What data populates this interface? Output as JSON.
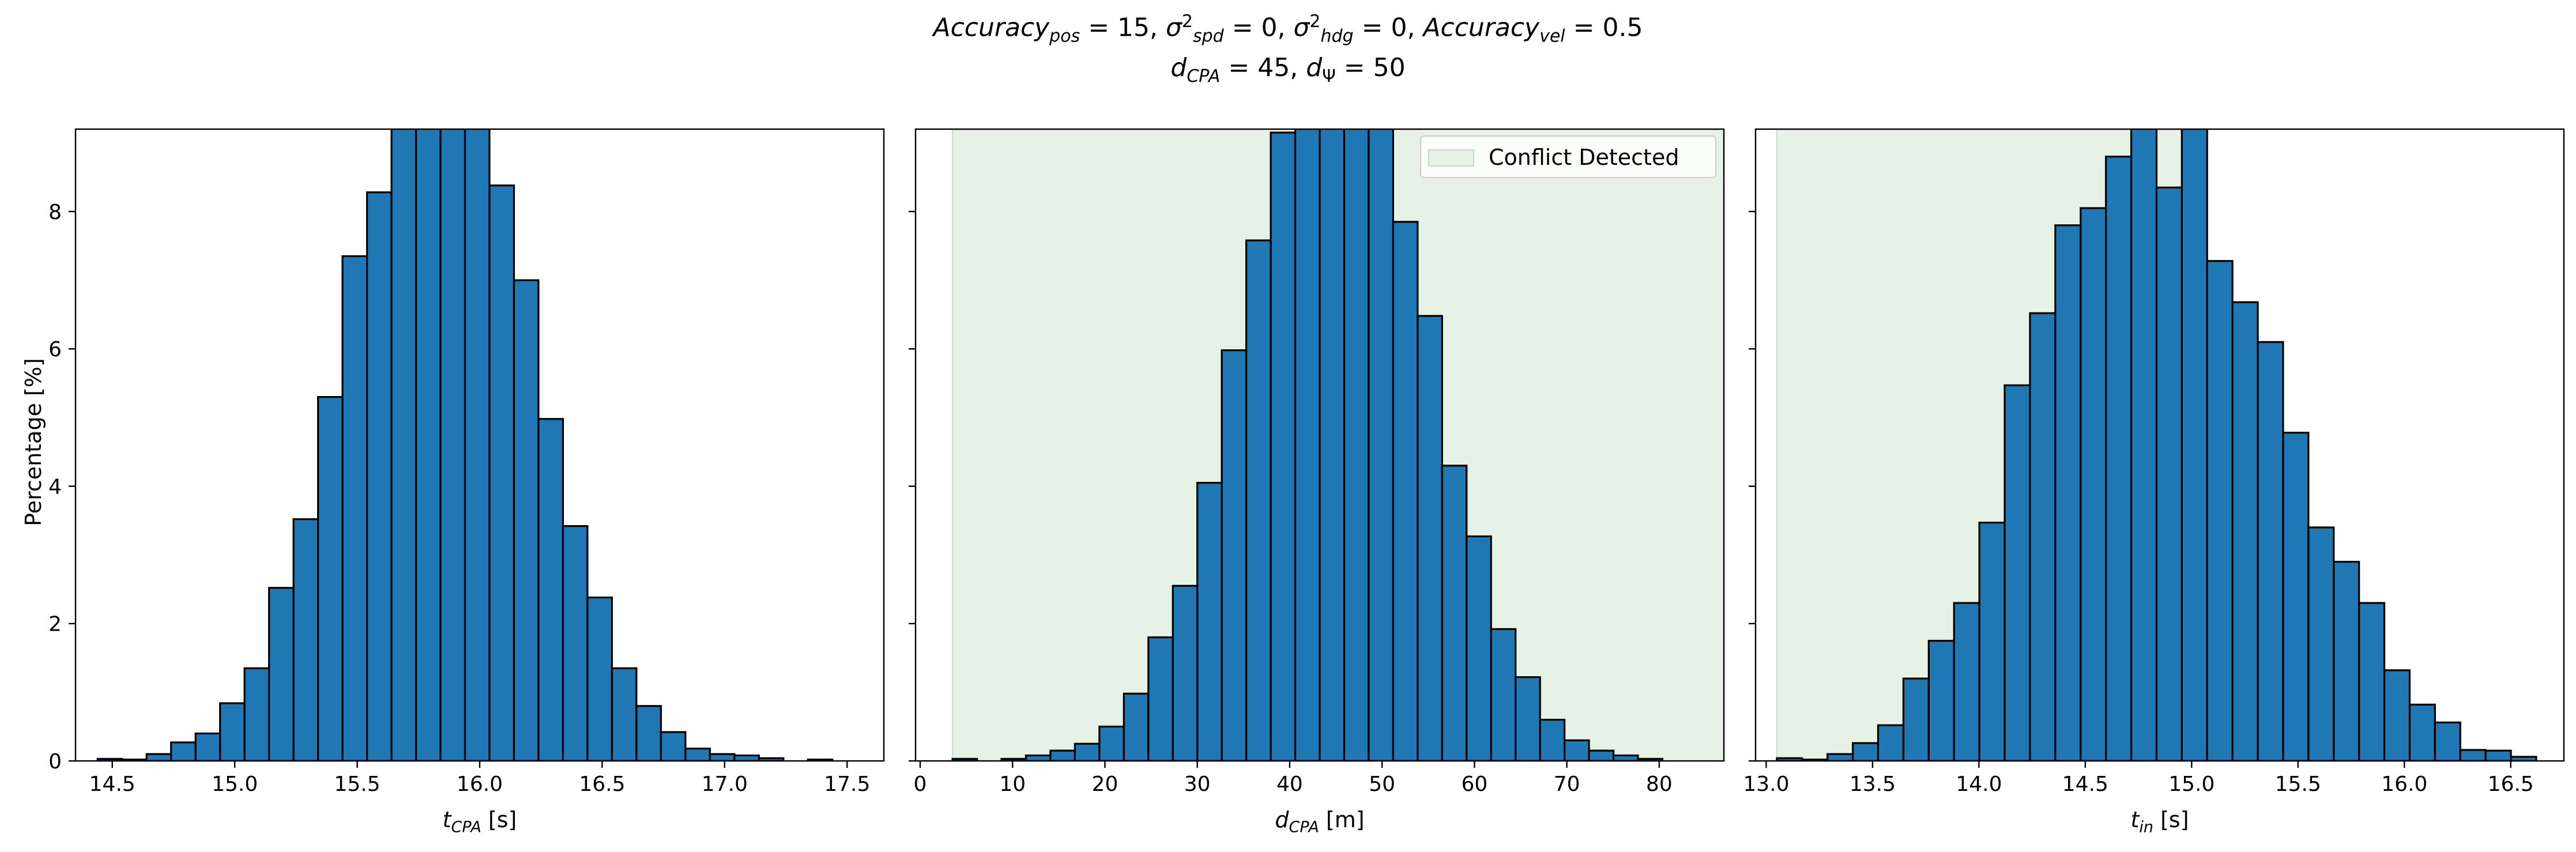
{
  "figure_title": {
    "line1": {
      "acc_pos_sym": "Accuracy",
      "acc_pos_sub": "pos",
      "acc_pos_val": " = 15, ",
      "spd_sym": "σ",
      "spd_sup": "2",
      "spd_sub": "spd",
      "spd_val": " = 0, ",
      "hdg_sym": "σ",
      "hdg_sup": "2",
      "hdg_sub": "hdg",
      "hdg_val": " = 0, ",
      "acc_vel_sym": "Accuracy",
      "acc_vel_sub": "vel",
      "acc_vel_val": " = 0.5"
    },
    "line2": {
      "d_sym": "d",
      "d_sub": "CPA",
      "d_val": " = 45, ",
      "dpsi_sym": "d",
      "dpsi_sub": "Ψ",
      "dpsi_val": " = 50"
    }
  },
  "ylabel": "Percentage [%]",
  "legend_label": "Conflict Detected",
  "colors": {
    "bar": "#1f77b4",
    "edge": "#000000",
    "shade": "#e5f2e5"
  },
  "chart_data": [
    {
      "type": "bar",
      "xlabel": {
        "sym": "t",
        "sub": "CPA",
        "unit": " [s]"
      },
      "ylabel": "Percentage [%]",
      "xlim": [
        14.35,
        17.65
      ],
      "ylim": [
        0,
        9.2
      ],
      "xticks": [
        14.5,
        15.0,
        15.5,
        16.0,
        16.5,
        17.0,
        17.5
      ],
      "xtick_labels": [
        "14.5",
        "15.0",
        "15.5",
        "16.0",
        "16.5",
        "17.0",
        "17.5"
      ],
      "yticks": [
        0,
        2,
        4,
        6,
        8
      ],
      "ytick_labels": [
        "0",
        "2",
        "4",
        "6",
        "8"
      ],
      "bin_start": 14.44,
      "bin_width": 0.1,
      "values": [
        0.03,
        0.02,
        0.1,
        0.27,
        0.4,
        0.84,
        1.35,
        2.52,
        3.52,
        5.3,
        7.35,
        8.28,
        9.5,
        9.8,
        9.6,
        9.4,
        8.38,
        7.0,
        4.98,
        3.42,
        2.38,
        1.35,
        0.8,
        0.42,
        0.18,
        0.1,
        0.08,
        0.04,
        0.0,
        0.02
      ]
    },
    {
      "type": "bar",
      "xlabel": {
        "sym": "d",
        "sub": "CPA",
        "unit": " [m]"
      },
      "xlim": [
        -0.5,
        87
      ],
      "ylim": [
        0,
        9.2
      ],
      "xticks": [
        0,
        10,
        20,
        30,
        40,
        50,
        60,
        70,
        80
      ],
      "xtick_labels": [
        "0",
        "10",
        "20",
        "30",
        "40",
        "50",
        "60",
        "70",
        "80"
      ],
      "yticks": [
        0,
        2,
        4,
        6,
        8
      ],
      "ytick_labels": [
        "",
        "",
        "",
        "",
        ""
      ],
      "shaded_region": {
        "x0": 3.5,
        "x1": 87,
        "label": "Conflict Detected"
      },
      "legend": "top-right",
      "bin_start": 3.5,
      "bin_width": 2.65,
      "values": [
        0.03,
        0.0,
        0.03,
        0.08,
        0.15,
        0.25,
        0.5,
        0.98,
        1.8,
        2.55,
        4.05,
        5.98,
        7.58,
        9.15,
        9.5,
        9.5,
        9.5,
        9.5,
        7.85,
        6.48,
        4.3,
        3.27,
        1.92,
        1.22,
        0.6,
        0.3,
        0.15,
        0.08,
        0.03,
        0.0
      ]
    },
    {
      "type": "bar",
      "xlabel": {
        "sym": "t",
        "sub": "in",
        "unit": " [s]"
      },
      "xlim": [
        12.95,
        16.75
      ],
      "ylim": [
        0,
        9.2
      ],
      "xticks": [
        13.0,
        13.5,
        14.0,
        14.5,
        15.0,
        15.5,
        16.0,
        16.5
      ],
      "xtick_labels": [
        "13.0",
        "13.5",
        "14.0",
        "14.5",
        "15.0",
        "15.5",
        "16.0",
        "16.5"
      ],
      "yticks": [
        0,
        2,
        4,
        6,
        8
      ],
      "ytick_labels": [
        "",
        "",
        "",
        "",
        ""
      ],
      "shaded_region": {
        "x0": 13.05,
        "x1": 15.0
      },
      "bin_start": 13.05,
      "bin_width": 0.119,
      "values": [
        0.04,
        0.02,
        0.1,
        0.26,
        0.52,
        1.2,
        1.75,
        2.3,
        3.47,
        5.47,
        6.52,
        7.8,
        8.05,
        8.8,
        9.6,
        8.35,
        9.68,
        7.28,
        6.68,
        6.1,
        4.78,
        3.4,
        2.9,
        2.3,
        1.32,
        0.82,
        0.56,
        0.16,
        0.15,
        0.06
      ]
    }
  ]
}
